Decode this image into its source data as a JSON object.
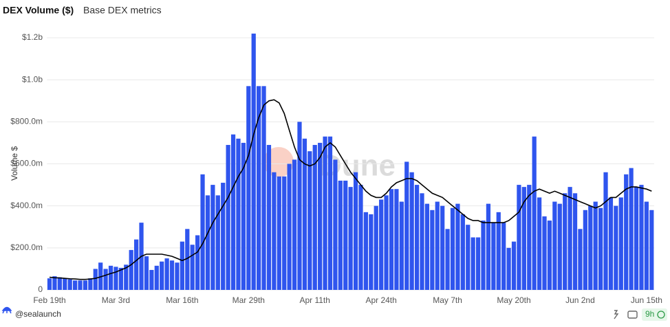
{
  "chart_data": {
    "type": "bar",
    "title": "DEX Volume ($)",
    "subtitle": "Base DEX metrics",
    "y_label": "Volume $",
    "watermark": "Dune",
    "categories": [
      "Feb 19th",
      null,
      null,
      null,
      null,
      null,
      null,
      null,
      null,
      null,
      null,
      null,
      null,
      "Mar 3rd",
      null,
      null,
      null,
      null,
      null,
      null,
      null,
      null,
      null,
      null,
      null,
      null,
      "Mar 16th",
      null,
      null,
      null,
      null,
      null,
      null,
      null,
      null,
      null,
      null,
      null,
      null,
      "Mar 29th",
      null,
      null,
      null,
      null,
      null,
      null,
      null,
      null,
      null,
      null,
      null,
      null,
      "Apr 11th",
      null,
      null,
      null,
      null,
      null,
      null,
      null,
      null,
      null,
      null,
      null,
      null,
      "Apr 24th",
      null,
      null,
      null,
      null,
      null,
      null,
      null,
      null,
      null,
      null,
      null,
      null,
      "May 7th",
      null,
      null,
      null,
      null,
      null,
      null,
      null,
      null,
      null,
      null,
      null,
      null,
      "May 20th",
      null,
      null,
      null,
      null,
      null,
      null,
      null,
      null,
      null,
      null,
      null,
      null,
      "Jun 2nd",
      null,
      null,
      null,
      null,
      null,
      null,
      null,
      null,
      null,
      null,
      null,
      null,
      "Jun 15th",
      null
    ],
    "series": [
      {
        "type": "bar",
        "color": "#2f55ee",
        "values": [
          55,
          65,
          60,
          55,
          50,
          45,
          45,
          45,
          55,
          100,
          130,
          100,
          115,
          110,
          105,
          120,
          190,
          240,
          320,
          160,
          95,
          115,
          135,
          150,
          140,
          130,
          230,
          290,
          215,
          260,
          550,
          450,
          500,
          450,
          510,
          690,
          740,
          720,
          700,
          970,
          1220,
          970,
          970,
          690,
          560,
          540,
          540,
          600,
          620,
          800,
          720,
          660,
          690,
          700,
          730,
          730,
          620,
          520,
          520,
          490,
          560,
          500,
          370,
          360,
          400,
          430,
          450,
          480,
          480,
          420,
          610,
          560,
          500,
          460,
          410,
          380,
          420,
          400,
          290,
          390,
          410,
          360,
          310,
          250,
          250,
          330,
          410,
          320,
          370,
          320,
          200,
          230,
          500,
          490,
          500,
          730,
          440,
          350,
          330,
          420,
          410,
          460,
          490,
          460,
          290,
          380,
          400,
          420,
          390,
          560,
          440,
          400,
          440,
          550,
          580,
          490,
          500,
          420,
          380
        ]
      },
      {
        "type": "line",
        "color": "#000000",
        "values": [
          60,
          58,
          57,
          55,
          53,
          52,
          50,
          50,
          52,
          55,
          62,
          70,
          78,
          85,
          95,
          105,
          120,
          140,
          160,
          170,
          170,
          170,
          170,
          165,
          160,
          150,
          140,
          150,
          165,
          180,
          220,
          270,
          320,
          360,
          400,
          440,
          490,
          540,
          580,
          640,
          740,
          820,
          880,
          900,
          905,
          890,
          840,
          760,
          680,
          620,
          600,
          590,
          600,
          630,
          680,
          700,
          680,
          640,
          600,
          560,
          530,
          500,
          470,
          450,
          440,
          440,
          460,
          490,
          510,
          520,
          530,
          530,
          520,
          500,
          480,
          460,
          450,
          440,
          420,
          400,
          380,
          360,
          340,
          330,
          330,
          320,
          320,
          320,
          320,
          320,
          330,
          350,
          370,
          420,
          450,
          470,
          480,
          470,
          460,
          470,
          460,
          450,
          440,
          430,
          420,
          410,
          400,
          390,
          400,
          420,
          440,
          440,
          460,
          480,
          490,
          490,
          485,
          480,
          470
        ]
      }
    ],
    "ylim": [
      0,
      1200
    ],
    "yticks": [
      0,
      {
        "value": 200,
        "label": "$200.0m"
      },
      {
        "value": 400,
        "label": "$400.0m"
      },
      {
        "value": 600,
        "label": "$600.0m"
      },
      {
        "value": 800,
        "label": "$800.0m"
      },
      {
        "value": 1000,
        "label": "$1.0b"
      },
      {
        "value": 1200,
        "label": "$1.2b"
      }
    ],
    "grid": true
  },
  "footer": {
    "author": "@sealaunch",
    "age": "9h"
  }
}
